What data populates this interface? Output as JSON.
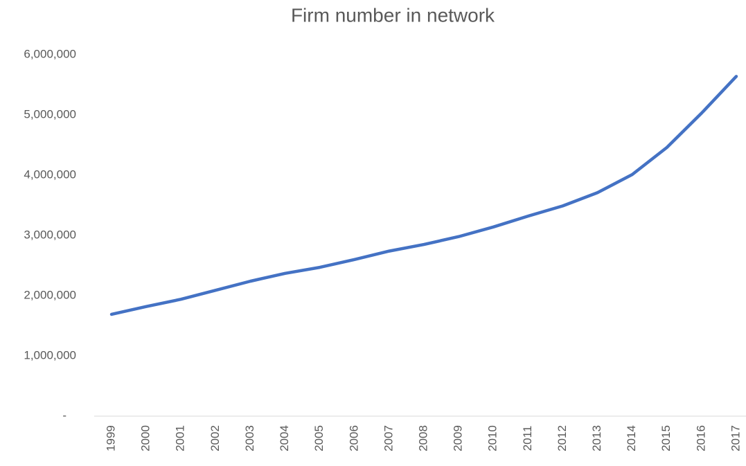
{
  "chart_data": {
    "type": "line",
    "title": "Firm number in network",
    "categories": [
      "1999",
      "2000",
      "2001",
      "2002",
      "2003",
      "2004",
      "2005",
      "2006",
      "2007",
      "2008",
      "2009",
      "2010",
      "2011",
      "2012",
      "2013",
      "2014",
      "2015",
      "2016",
      "2017"
    ],
    "series": [
      {
        "color": "#4472c4",
        "values": [
          1690000,
          1820000,
          1940000,
          2090000,
          2240000,
          2370000,
          2470000,
          2600000,
          2740000,
          2850000,
          2980000,
          3140000,
          3320000,
          3490000,
          3710000,
          4010000,
          4460000,
          5030000,
          5640000
        ]
      }
    ],
    "ylim": [
      0,
      6000000
    ],
    "yticks": [
      {
        "value": 0,
        "label": "-"
      },
      {
        "value": 1000000,
        "label": "1,000,000"
      },
      {
        "value": 2000000,
        "label": "2,000,000"
      },
      {
        "value": 3000000,
        "label": "3,000,000"
      },
      {
        "value": 4000000,
        "label": "4,000,000"
      },
      {
        "value": 5000000,
        "label": "5,000,000"
      },
      {
        "value": 6000000,
        "label": "6,000,000"
      }
    ],
    "grid": false
  }
}
